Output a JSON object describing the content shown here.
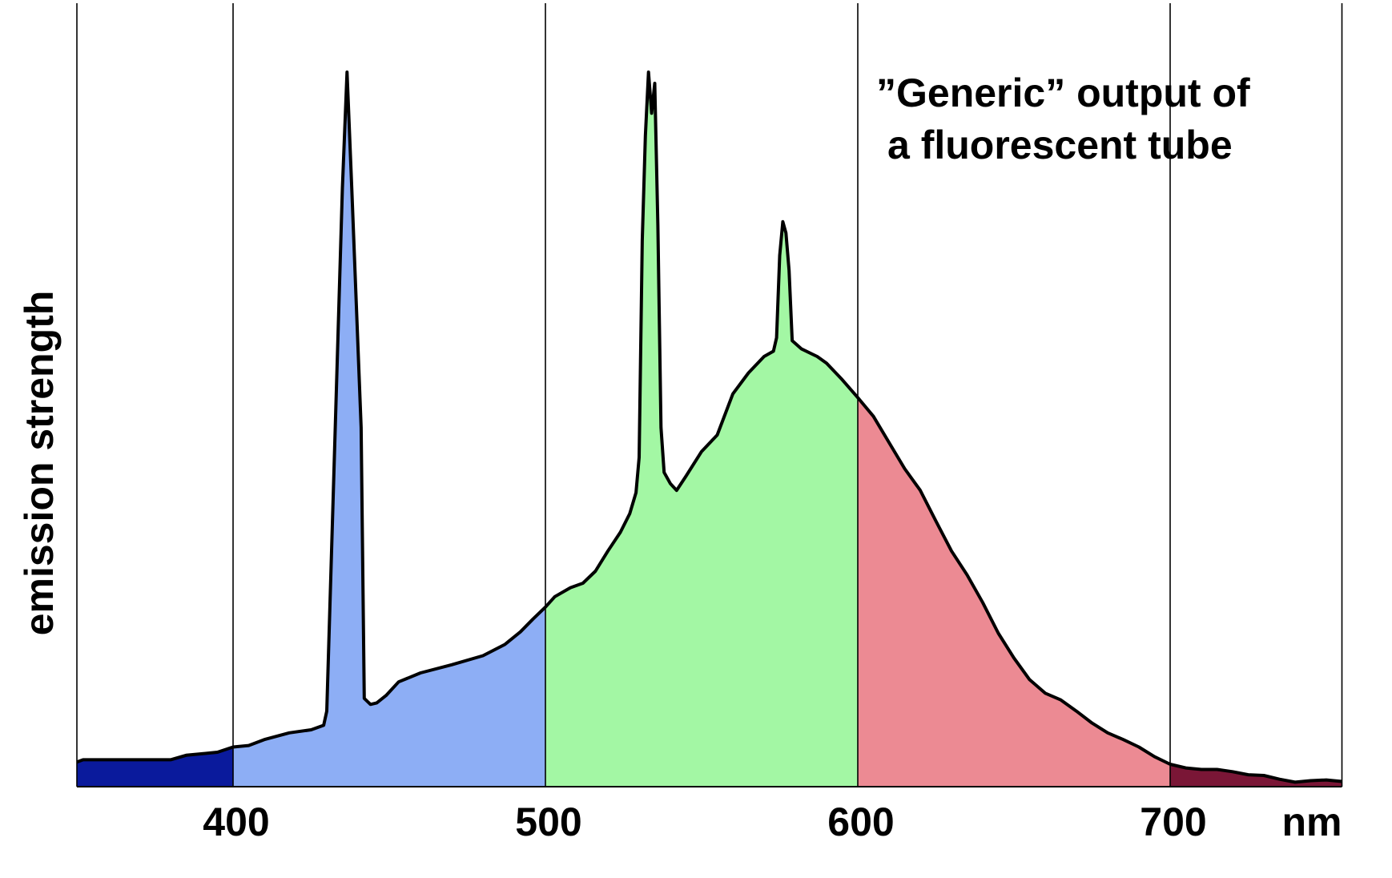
{
  "chart_data": {
    "type": "area",
    "title": "",
    "annotation_lines": [
      "”Generic” output of",
      "a fluorescent tube"
    ],
    "xlabel": "nm",
    "ylabel": "emission strength",
    "x_ticks": [
      400,
      500,
      600,
      700
    ],
    "x_tick_labels": [
      "400",
      "500",
      "600",
      "700"
    ],
    "xlim": [
      350,
      760
    ],
    "ylim": [
      0,
      100
    ],
    "grid": "vertical lines at 350, 400, 500, 600, 700, 755",
    "bands": [
      {
        "from": 350,
        "to": 400,
        "color": "#0a1a9c"
      },
      {
        "from": 400,
        "to": 500,
        "color": "#8daef5"
      },
      {
        "from": 500,
        "to": 600,
        "color": "#a3f7a4"
      },
      {
        "from": 600,
        "to": 700,
        "color": "#ec8a93"
      },
      {
        "from": 700,
        "to": 760,
        "color": "#7a1636"
      }
    ],
    "spectrum": [
      [
        350,
        3.3
      ],
      [
        352,
        3.6
      ],
      [
        380,
        3.6
      ],
      [
        385,
        4.2
      ],
      [
        395,
        4.6
      ],
      [
        400,
        5.3
      ],
      [
        405,
        5.5
      ],
      [
        410,
        6.3
      ],
      [
        418,
        7.2
      ],
      [
        425,
        7.6
      ],
      [
        429,
        8.2
      ],
      [
        430,
        10.1
      ],
      [
        432,
        38
      ],
      [
        435,
        80
      ],
      [
        436.5,
        95.5
      ],
      [
        438,
        80
      ],
      [
        441,
        48
      ],
      [
        442,
        11.8
      ],
      [
        444,
        11
      ],
      [
        446,
        11.2
      ],
      [
        449,
        12.2
      ],
      [
        453,
        14.0
      ],
      [
        460,
        15.2
      ],
      [
        470,
        16.3
      ],
      [
        480,
        17.5
      ],
      [
        487,
        19.0
      ],
      [
        492,
        20.7
      ],
      [
        496,
        22.4
      ],
      [
        500,
        24.0
      ],
      [
        503,
        25.4
      ],
      [
        508,
        26.6
      ],
      [
        512,
        27.2
      ],
      [
        516,
        28.8
      ],
      [
        520,
        31.5
      ],
      [
        524,
        34.0
      ],
      [
        527,
        36.5
      ],
      [
        529,
        39.3
      ],
      [
        530,
        44
      ],
      [
        531,
        73
      ],
      [
        532,
        87
      ],
      [
        533,
        95.5
      ],
      [
        534,
        90
      ],
      [
        535,
        94
      ],
      [
        536,
        75
      ],
      [
        537,
        48
      ],
      [
        538,
        42
      ],
      [
        540,
        40.5
      ],
      [
        542,
        39.6
      ],
      [
        545,
        41.5
      ],
      [
        550,
        44.8
      ],
      [
        555,
        47.0
      ],
      [
        560,
        52.5
      ],
      [
        565,
        55.3
      ],
      [
        570,
        57.5
      ],
      [
        573,
        58.2
      ],
      [
        574,
        60.0
      ],
      [
        575,
        71
      ],
      [
        576,
        75.5
      ],
      [
        577,
        74
      ],
      [
        578,
        69
      ],
      [
        579,
        59.6
      ],
      [
        582,
        58.5
      ],
      [
        587,
        57.5
      ],
      [
        590,
        56.6
      ],
      [
        595,
        54.4
      ],
      [
        600,
        52.0
      ],
      [
        605,
        49.5
      ],
      [
        610,
        46.0
      ],
      [
        615,
        42.5
      ],
      [
        620,
        39.6
      ],
      [
        625,
        35.5
      ],
      [
        630,
        31.5
      ],
      [
        635,
        28.3
      ],
      [
        640,
        24.6
      ],
      [
        645,
        20.5
      ],
      [
        650,
        17.2
      ],
      [
        655,
        14.3
      ],
      [
        660,
        12.5
      ],
      [
        665,
        11.6
      ],
      [
        670,
        10.1
      ],
      [
        675,
        8.5
      ],
      [
        680,
        7.2
      ],
      [
        685,
        6.3
      ],
      [
        690,
        5.3
      ],
      [
        695,
        4.0
      ],
      [
        700,
        3.0
      ],
      [
        705,
        2.5
      ],
      [
        710,
        2.3
      ],
      [
        715,
        2.3
      ],
      [
        720,
        2.0
      ],
      [
        725,
        1.6
      ],
      [
        730,
        1.5
      ],
      [
        735,
        1.0
      ],
      [
        740,
        0.6
      ],
      [
        745,
        0.8
      ],
      [
        750,
        0.9
      ],
      [
        755,
        0.7
      ]
    ]
  }
}
